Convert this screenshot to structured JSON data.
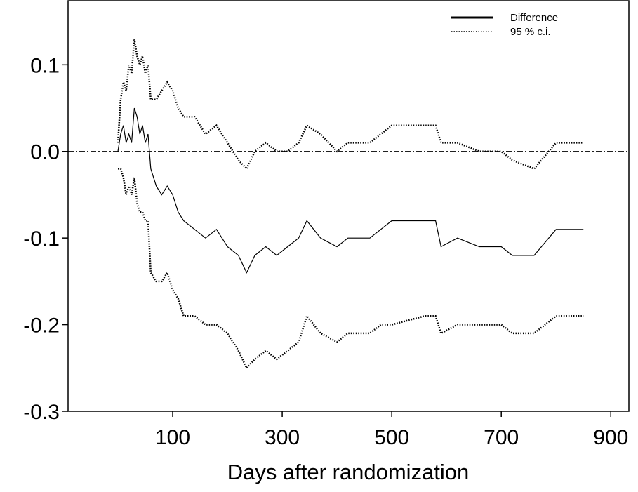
{
  "chart_data": {
    "type": "line",
    "x_label": "Days after randomization",
    "x": [
      0,
      5,
      10,
      15,
      20,
      25,
      30,
      35,
      40,
      45,
      50,
      55,
      60,
      70,
      80,
      90,
      100,
      110,
      120,
      140,
      160,
      180,
      200,
      220,
      235,
      250,
      270,
      290,
      310,
      330,
      345,
      370,
      400,
      420,
      460,
      480,
      500,
      560,
      580,
      590,
      620,
      660,
      700,
      720,
      760,
      800,
      850
    ],
    "series": [
      {
        "name": "Difference",
        "color": "#000000",
        "style": "solid",
        "values": [
          0,
          0.02,
          0.03,
          0.01,
          0.02,
          0.01,
          0.05,
          0.04,
          0.02,
          0.03,
          0.01,
          0.02,
          -0.02,
          -0.04,
          -0.05,
          -0.04,
          -0.05,
          -0.07,
          -0.08,
          -0.09,
          -0.1,
          -0.09,
          -0.11,
          -0.12,
          -0.14,
          -0.12,
          -0.11,
          -0.12,
          -0.11,
          -0.1,
          -0.08,
          -0.1,
          -0.11,
          -0.1,
          -0.1,
          -0.09,
          -0.08,
          -0.08,
          -0.08,
          -0.11,
          -0.1,
          -0.11,
          -0.11,
          -0.12,
          -0.12,
          -0.09,
          -0.09
        ]
      },
      {
        "name": "95 % c.i.",
        "color": "#000000",
        "style": "dotted",
        "values": [
          0.01,
          0.06,
          0.08,
          0.07,
          0.1,
          0.09,
          0.13,
          0.11,
          0.1,
          0.11,
          0.09,
          0.1,
          0.06,
          0.06,
          0.07,
          0.08,
          0.07,
          0.05,
          0.04,
          0.04,
          0.02,
          0.03,
          0.01,
          -0.01,
          -0.02,
          0,
          0.01,
          0,
          0,
          0.01,
          0.03,
          0.02,
          0,
          0.01,
          0.01,
          0.02,
          0.03,
          0.03,
          0.03,
          0.01,
          0.01,
          0,
          0,
          -0.01,
          -0.02,
          0.01,
          0.01
        ]
      },
      {
        "color": "#000000",
        "style": "dotted",
        "values": [
          -0.02,
          -0.02,
          -0.03,
          -0.05,
          -0.04,
          -0.05,
          -0.03,
          -0.06,
          -0.07,
          -0.07,
          -0.08,
          -0.08,
          -0.14,
          -0.15,
          -0.15,
          -0.14,
          -0.16,
          -0.17,
          -0.19,
          -0.19,
          -0.2,
          -0.2,
          -0.21,
          -0.23,
          -0.25,
          -0.24,
          -0.23,
          -0.24,
          -0.23,
          -0.22,
          -0.19,
          -0.21,
          -0.22,
          -0.21,
          -0.21,
          -0.2,
          -0.2,
          -0.19,
          -0.19,
          -0.21,
          -0.2,
          -0.2,
          -0.2,
          -0.21,
          -0.21,
          -0.19,
          -0.19
        ]
      }
    ],
    "reference_line": 0,
    "xlim": [
      -91,
      933
    ],
    "ylim": [
      -0.3,
      0.174
    ],
    "xticks": [
      100,
      300,
      500,
      700,
      900
    ],
    "yticks": [
      0.1,
      {
        "value": 0,
        "label": "0.0"
      },
      -0.1,
      -0.2,
      -0.3
    ],
    "legend": "upper right"
  }
}
